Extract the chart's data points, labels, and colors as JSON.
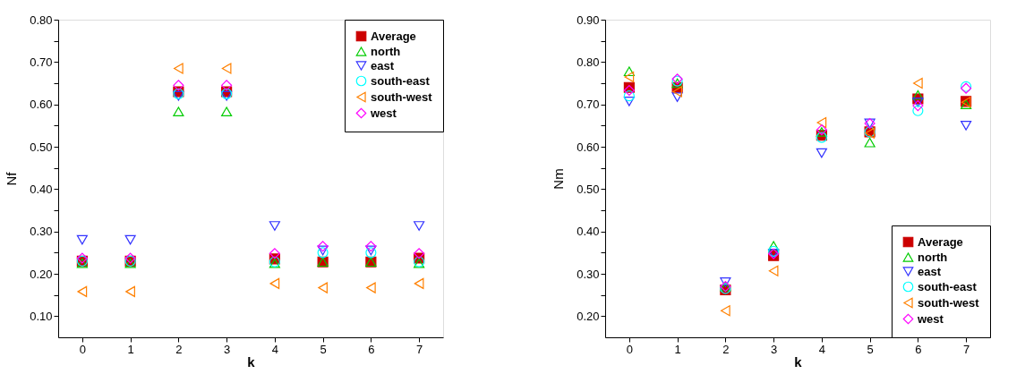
{
  "chart_data": [
    {
      "type": "scatter",
      "xlabel": "k",
      "ylabel": "Nf",
      "legend": "top right",
      "x": [
        0,
        1,
        2,
        3,
        4,
        5,
        6,
        7
      ],
      "xlim": [
        -0.5,
        7.5
      ],
      "xticks": [
        0,
        1,
        2,
        3,
        4,
        5,
        6,
        7
      ],
      "ylim": [
        0.05,
        0.8
      ],
      "yticks": [
        {
          "value": 0.1,
          "label": "0.10"
        },
        {
          "value": 0.15,
          "label": null
        },
        {
          "value": 0.2,
          "label": "0.20"
        },
        {
          "value": 0.25,
          "label": null
        },
        {
          "value": 0.3,
          "label": "0.30"
        },
        {
          "value": 0.35,
          "label": null
        },
        {
          "value": 0.4,
          "label": "0.40"
        },
        {
          "value": 0.45,
          "label": null
        },
        {
          "value": 0.5,
          "label": "0.50"
        },
        {
          "value": 0.55,
          "label": null
        },
        {
          "value": 0.6,
          "label": "0.60"
        },
        {
          "value": 0.65,
          "label": null
        },
        {
          "value": 0.7,
          "label": "0.70"
        },
        {
          "value": 0.75,
          "label": null
        },
        {
          "value": 0.8,
          "label": "0.80"
        }
      ],
      "grid": false,
      "series": [
        {
          "name": "Average",
          "color": "#cc0000",
          "marker": "square",
          "values": [
            0.23,
            0.23,
            0.63,
            0.63,
            0.235,
            0.228,
            0.228,
            0.237
          ]
        },
        {
          "name": "north",
          "color": "#00cc00",
          "marker": "triangle",
          "values": [
            0.225,
            0.225,
            0.583,
            0.583,
            0.225,
            0.228,
            0.228,
            0.225
          ]
        },
        {
          "name": "east",
          "color": "#3333ff",
          "marker": "triangle-down",
          "values": [
            0.28,
            0.28,
            0.62,
            0.62,
            0.313,
            0.255,
            0.255,
            0.313
          ]
        },
        {
          "name": "south-east",
          "color": "#00ffff",
          "marker": "circle",
          "values": [
            0.23,
            0.23,
            0.625,
            0.625,
            0.228,
            0.25,
            0.25,
            0.228
          ]
        },
        {
          "name": "south-west",
          "color": "#ff8000",
          "marker": "triangle-left",
          "values": [
            0.158,
            0.158,
            0.685,
            0.685,
            0.177,
            0.167,
            0.167,
            0.177
          ]
        },
        {
          "name": "west",
          "color": "#ff00ff",
          "marker": "diamond",
          "values": [
            0.237,
            0.237,
            0.645,
            0.645,
            0.248,
            0.265,
            0.265,
            0.248
          ]
        }
      ]
    },
    {
      "type": "scatter",
      "xlabel": "k",
      "ylabel": "Nm",
      "legend": "bottom right",
      "x": [
        0,
        1,
        2,
        3,
        4,
        5,
        6,
        7
      ],
      "xlim": [
        -0.5,
        7.5
      ],
      "xticks": [
        0,
        1,
        2,
        3,
        4,
        5,
        6,
        7
      ],
      "ylim": [
        0.15,
        0.9
      ],
      "yticks": [
        {
          "value": 0.2,
          "label": "0.20"
        },
        {
          "value": 0.25,
          "label": null
        },
        {
          "value": 0.3,
          "label": "0.30"
        },
        {
          "value": 0.35,
          "label": null
        },
        {
          "value": 0.4,
          "label": "0.40"
        },
        {
          "value": 0.45,
          "label": null
        },
        {
          "value": 0.5,
          "label": "0.50"
        },
        {
          "value": 0.55,
          "label": null
        },
        {
          "value": 0.6,
          "label": "0.60"
        },
        {
          "value": 0.65,
          "label": null
        },
        {
          "value": 0.7,
          "label": "0.70"
        },
        {
          "value": 0.75,
          "label": null
        },
        {
          "value": 0.8,
          "label": "0.80"
        },
        {
          "value": 0.85,
          "label": null
        },
        {
          "value": 0.9,
          "label": "0.90"
        }
      ],
      "grid": false,
      "series": [
        {
          "name": "Average",
          "color": "#cc0000",
          "marker": "square",
          "values": [
            0.74,
            0.74,
            0.262,
            0.343,
            0.627,
            0.635,
            0.713,
            0.707
          ]
        },
        {
          "name": "north",
          "color": "#00cc00",
          "marker": "triangle",
          "values": [
            0.778,
            0.75,
            0.27,
            0.366,
            0.635,
            0.61,
            0.722,
            0.7
          ]
        },
        {
          "name": "east",
          "color": "#3333ff",
          "marker": "triangle-down",
          "values": [
            0.707,
            0.717,
            0.28,
            0.348,
            0.585,
            0.655,
            0.705,
            0.65
          ]
        },
        {
          "name": "south-east",
          "color": "#00ffff",
          "marker": "circle",
          "values": [
            0.72,
            0.755,
            0.265,
            0.353,
            0.622,
            0.635,
            0.685,
            0.742
          ]
        },
        {
          "name": "south-west",
          "color": "#ff8000",
          "marker": "triangle-left",
          "values": [
            0.765,
            0.73,
            0.213,
            0.307,
            0.657,
            0.632,
            0.75,
            0.705
          ]
        },
        {
          "name": "west",
          "color": "#ff00ff",
          "marker": "diamond",
          "values": [
            0.733,
            0.76,
            0.27,
            0.347,
            0.64,
            0.655,
            0.697,
            0.738
          ]
        }
      ]
    }
  ]
}
